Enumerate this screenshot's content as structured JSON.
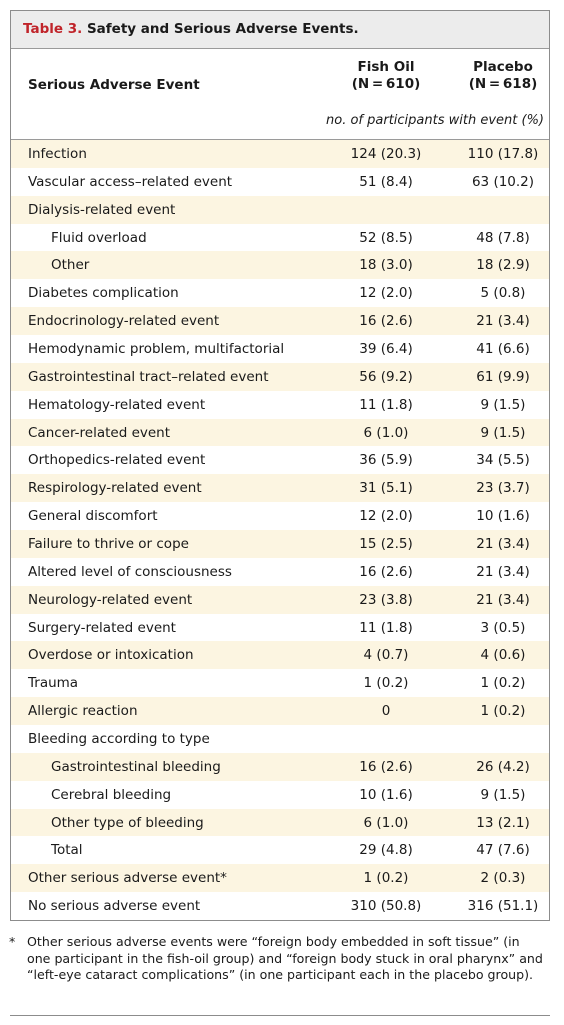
{
  "table": {
    "title_number": "Table 3.",
    "title_text": "Safety and Serious Adverse Events.",
    "column_event": "Serious Adverse Event",
    "column_fish_name": "Fish Oil",
    "column_fish_n": "(N = 610)",
    "column_placebo_name": "Placebo",
    "column_placebo_n": "(N = 618)",
    "unit_label": "no. of participants with event (%)",
    "rows": [
      {
        "label": "Infection",
        "fish_oil": "124 (20.3)",
        "placebo": "110 (17.8)"
      },
      {
        "label": "Vascular access–related event",
        "fish_oil": "51 (8.4)",
        "placebo": "63 (10.2)"
      },
      {
        "label": "Dialysis-related event",
        "fish_oil": "",
        "placebo": ""
      },
      {
        "label": "Fluid overload",
        "fish_oil": "52 (8.5)",
        "placebo": "48 (7.8)"
      },
      {
        "label": "Other",
        "fish_oil": "18 (3.0)",
        "placebo": "18 (2.9)"
      },
      {
        "label": "Diabetes complication",
        "fish_oil": "12 (2.0)",
        "placebo": "5 (0.8)"
      },
      {
        "label": "Endocrinology-related event",
        "fish_oil": "16 (2.6)",
        "placebo": "21 (3.4)"
      },
      {
        "label": "Hemodynamic problem, multifactorial",
        "fish_oil": "39 (6.4)",
        "placebo": "41 (6.6)"
      },
      {
        "label": "Gastrointestinal tract–related event",
        "fish_oil": "56 (9.2)",
        "placebo": "61 (9.9)"
      },
      {
        "label": "Hematology-related event",
        "fish_oil": "11 (1.8)",
        "placebo": "9 (1.5)"
      },
      {
        "label": "Cancer-related event",
        "fish_oil": "6 (1.0)",
        "placebo": "9 (1.5)"
      },
      {
        "label": "Orthopedics-related event",
        "fish_oil": "36 (5.9)",
        "placebo": "34 (5.5)"
      },
      {
        "label": "Respirology-related event",
        "fish_oil": "31 (5.1)",
        "placebo": "23 (3.7)"
      },
      {
        "label": "General discomfort",
        "fish_oil": "12 (2.0)",
        "placebo": "10 (1.6)"
      },
      {
        "label": "Failure to thrive or cope",
        "fish_oil": "15 (2.5)",
        "placebo": "21 (3.4)"
      },
      {
        "label": "Altered level of consciousness",
        "fish_oil": "16 (2.6)",
        "placebo": "21 (3.4)"
      },
      {
        "label": "Neurology-related event",
        "fish_oil": "23 (3.8)",
        "placebo": "21 (3.4)"
      },
      {
        "label": "Surgery-related event",
        "fish_oil": "11 (1.8)",
        "placebo": "3 (0.5)"
      },
      {
        "label": "Overdose or intoxication",
        "fish_oil": "4 (0.7)",
        "placebo": "4 (0.6)"
      },
      {
        "label": "Trauma",
        "fish_oil": "1 (0.2)",
        "placebo": "1 (0.2)"
      },
      {
        "label": "Allergic reaction",
        "fish_oil": "0",
        "placebo": "1 (0.2)"
      },
      {
        "label": "Bleeding according to type",
        "fish_oil": "",
        "placebo": ""
      },
      {
        "label": "Gastrointestinal bleeding",
        "fish_oil": "16 (2.6)",
        "placebo": "26 (4.2)"
      },
      {
        "label": "Cerebral bleeding",
        "fish_oil": "10 (1.6)",
        "placebo": "9 (1.5)"
      },
      {
        "label": "Other type of bleeding",
        "fish_oil": "6 (1.0)",
        "placebo": "13 (2.1)"
      },
      {
        "label": "Total",
        "fish_oil": "29 (4.8)",
        "placebo": "47 (7.6)"
      },
      {
        "label": "Other serious adverse event*",
        "fish_oil": "1 (0.2)",
        "placebo": "2 (0.3)"
      },
      {
        "label": "No serious adverse event",
        "fish_oil": "310 (50.8)",
        "placebo": "316 (51.1)"
      }
    ]
  },
  "footnote": {
    "mark": "*",
    "text": "Other serious adverse events were “foreign body embedded in soft tissue” (in one participant in the fish-oil group) and “foreign body stuck in oral pharynx” and “left-eye cataract complications” (in one participant each in the placebo group)."
  },
  "colors": {
    "title_accent": "#c0242a",
    "row_shade": "#fcf5e1",
    "title_bar": "#ececec"
  }
}
